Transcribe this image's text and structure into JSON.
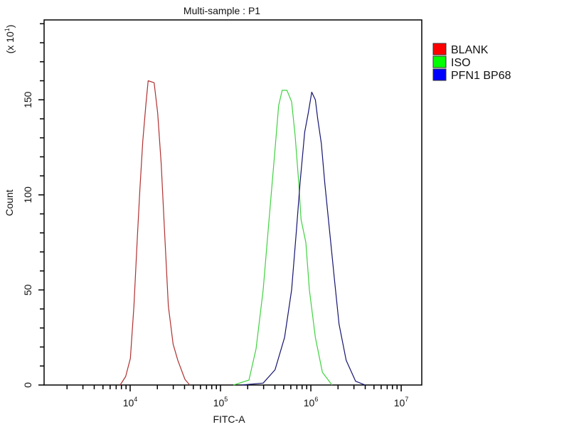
{
  "chart_data": {
    "type": "line",
    "title": "Multi-sample : P1",
    "xlabel": "FITC-A",
    "ylabel": "Count",
    "y_multiplier": {
      "base": "(x 10",
      "exp": "1",
      "close": ")"
    },
    "x_scale": "log",
    "xlim": [
      1115,
      16900000
    ],
    "ylim": [
      0,
      192
    ],
    "x_ticks": [
      {
        "value": 10000,
        "base": "10",
        "exp": "4"
      },
      {
        "value": 100000,
        "base": "10",
        "exp": "5"
      },
      {
        "value": 1000000,
        "base": "10",
        "exp": "6"
      },
      {
        "value": 10000000,
        "base": "10",
        "exp": "7"
      }
    ],
    "y_ticks": [
      0,
      50,
      100,
      150
    ],
    "grid": false,
    "legend_position": "right",
    "series": [
      {
        "name": "BLANK",
        "color": "#b03030",
        "legend_color": "#ff0000",
        "x": [
          7760,
          8920,
          10050,
          11000,
          12050,
          12820,
          13780,
          14890,
          15820,
          18420,
          20180,
          22080,
          24150,
          26470,
          29870,
          33710,
          40380,
          45600
        ],
        "y": [
          0,
          4.5,
          14,
          41.5,
          79,
          103,
          128,
          147,
          160,
          159,
          143,
          116,
          79,
          41.5,
          21.5,
          13,
          3,
          0
        ]
      },
      {
        "name": "ISO",
        "color": "#3fd23f",
        "legend_color": "#00ff00",
        "x": [
          139400,
          206500,
          247600,
          296700,
          345000,
          401700,
          440000,
          481400,
          543000,
          612800,
          670900,
          735000,
          780000,
          880600,
          964000,
          1122000,
          1344000,
          1714000
        ],
        "y": [
          0,
          2.6,
          19,
          50,
          87,
          124,
          147,
          155,
          155,
          149,
          131,
          106,
          87,
          75,
          50,
          25,
          6.7,
          0
        ]
      },
      {
        "name": "PFN1 BP68",
        "color": "#141470",
        "legend_color": "#0000ff",
        "x": [
          172200,
          296700,
          401700,
          511500,
          612800,
          691600,
          758000,
          854800,
          936000,
          1024000,
          1122000,
          1192000,
          1306000,
          1429000,
          1612000,
          1820000,
          2054000,
          2461000,
          3133000,
          3990000
        ],
        "y": [
          0,
          1,
          8,
          25,
          50,
          81,
          106,
          133,
          143,
          154,
          150,
          140,
          127,
          106,
          81,
          56,
          32,
          13,
          2,
          0
        ]
      }
    ]
  }
}
